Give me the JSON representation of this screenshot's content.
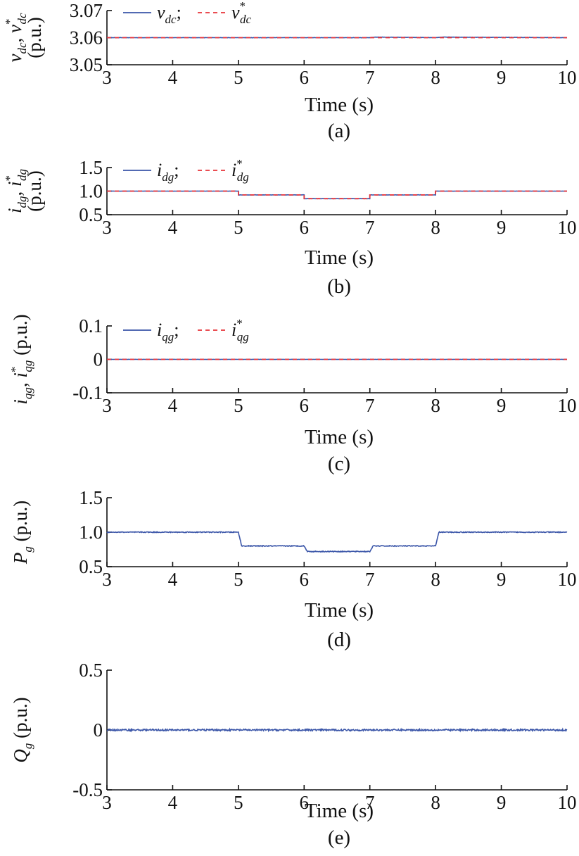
{
  "colors": {
    "measured": "#3a55a8",
    "reference": "#e8343a",
    "axis": "#111111"
  },
  "chart_data": [
    {
      "type": "line",
      "caption": "(a)",
      "xlabel": "Time (s)",
      "xlim": [
        3,
        10
      ],
      "xticks": [
        3,
        4,
        5,
        6,
        7,
        8,
        9,
        10
      ],
      "ylim": [
        3.05,
        3.07
      ],
      "yticks": [
        3.05,
        3.06,
        3.07
      ],
      "yticklabels": [
        "3.05",
        "3.06",
        "3.07"
      ],
      "ylabel": {
        "main": "v",
        "sub": "dc",
        "sep": ", ",
        "main2": "v",
        "sup2": "*",
        "sub2": "dc",
        "unit": "(p.u.)"
      },
      "legend": [
        {
          "main": "v",
          "sub": "dc",
          "suffix": ";",
          "style": "solid"
        },
        {
          "main": "v",
          "sub": "dc",
          "sup": "*",
          "suffix": "",
          "style": "dashed"
        }
      ],
      "series": [
        {
          "style": "solid",
          "x": [
            3,
            5,
            6,
            7,
            7.1,
            8,
            8.1,
            10
          ],
          "y": [
            3.06,
            3.06,
            3.06,
            3.06,
            3.0602,
            3.06,
            3.0602,
            3.06
          ],
          "noise": 5e-05
        },
        {
          "style": "dashed",
          "x": [
            3,
            10
          ],
          "y": [
            3.06,
            3.06
          ]
        }
      ]
    },
    {
      "type": "line",
      "caption": "(b)",
      "xlabel": "Time (s)",
      "xlim": [
        3,
        10
      ],
      "xticks": [
        3,
        4,
        5,
        6,
        7,
        8,
        9,
        10
      ],
      "ylim": [
        0.5,
        1.5
      ],
      "yticks": [
        0.5,
        1.0,
        1.5
      ],
      "yticklabels": [
        "0.5",
        "1.0",
        "1.5"
      ],
      "ylabel": {
        "main": "i",
        "sub": "dg",
        "sep": ", ",
        "main2": "i",
        "sup2": "*",
        "sub2": "dg",
        "unit": "(p.u.)"
      },
      "legend": [
        {
          "main": "i",
          "sub": "dg",
          "suffix": ";",
          "style": "solid"
        },
        {
          "main": "i",
          "sub": "dg",
          "sup": "*",
          "suffix": "",
          "style": "dashed"
        }
      ],
      "series": [
        {
          "style": "solid",
          "x": [
            3,
            5,
            5,
            6,
            6,
            7,
            7,
            8,
            8,
            10
          ],
          "y": [
            1.0,
            1.0,
            0.92,
            0.92,
            0.84,
            0.84,
            0.92,
            0.92,
            1.0,
            1.0
          ],
          "noise": 0.002
        },
        {
          "style": "dashed",
          "x": [
            3,
            5,
            5,
            6,
            6,
            7,
            7,
            8,
            8,
            10
          ],
          "y": [
            1.0,
            1.0,
            0.92,
            0.92,
            0.84,
            0.84,
            0.92,
            0.92,
            1.0,
            1.0
          ]
        }
      ]
    },
    {
      "type": "line",
      "caption": "(c)",
      "xlabel": "Time (s)",
      "xlim": [
        3,
        10
      ],
      "xticks": [
        3,
        4,
        5,
        6,
        7,
        8,
        9,
        10
      ],
      "ylim": [
        -0.1,
        0.1
      ],
      "yticks": [
        -0.1,
        0,
        0.1
      ],
      "yticklabels": [
        "-0.1",
        "0",
        "0.1"
      ],
      "ylabel": {
        "main": "i",
        "sub": "qg",
        "sep": ", ",
        "main2": "i",
        "sup2": "*",
        "sub2": "qg",
        "unit": "(p.u.)",
        "single_line": true
      },
      "legend": [
        {
          "main": "i",
          "sub": "qg",
          "suffix": ";",
          "style": "solid"
        },
        {
          "main": "i",
          "sub": "qg",
          "sup": "*",
          "suffix": "",
          "style": "dashed"
        }
      ],
      "series": [
        {
          "style": "solid",
          "x": [
            3,
            10
          ],
          "y": [
            0,
            0
          ],
          "noise": 0.0003
        },
        {
          "style": "dashed",
          "x": [
            3,
            10
          ],
          "y": [
            0,
            0
          ]
        }
      ]
    },
    {
      "type": "line",
      "caption": "(d)",
      "xlabel": "Time (s)",
      "xlim": [
        3,
        10
      ],
      "xticks": [
        3,
        4,
        5,
        6,
        7,
        8,
        9,
        10
      ],
      "ylim": [
        0.5,
        1.5
      ],
      "yticks": [
        0.5,
        1.0,
        1.5
      ],
      "yticklabels": [
        "0.5",
        "1.0",
        "1.5"
      ],
      "ylabel": {
        "main": "P",
        "sub": "g",
        "unit": "(p.u.)",
        "single_line": true
      },
      "legend": [],
      "series": [
        {
          "style": "solid",
          "x": [
            3,
            5,
            5.05,
            6,
            6.05,
            7,
            7.05,
            8,
            8.05,
            10
          ],
          "y": [
            1.0,
            1.0,
            0.8,
            0.8,
            0.72,
            0.72,
            0.8,
            0.8,
            1.0,
            1.0
          ],
          "noise": 0.006
        }
      ]
    },
    {
      "type": "line",
      "caption": "(e)",
      "xlabel": "Time (s)",
      "xlim": [
        3,
        10
      ],
      "xticks": [
        3,
        4,
        5,
        6,
        7,
        8,
        9,
        10
      ],
      "ylim": [
        -0.5,
        0.5
      ],
      "yticks": [
        -0.5,
        0,
        0.5
      ],
      "yticklabels": [
        "-0.5",
        "0",
        "0.5"
      ],
      "ylabel": {
        "main": "Q",
        "sub": "g",
        "unit": "(p.u.)",
        "single_line": true
      },
      "legend": [],
      "series": [
        {
          "style": "solid",
          "x": [
            3,
            10
          ],
          "y": [
            0,
            0
          ],
          "noise": 0.007
        }
      ]
    }
  ]
}
